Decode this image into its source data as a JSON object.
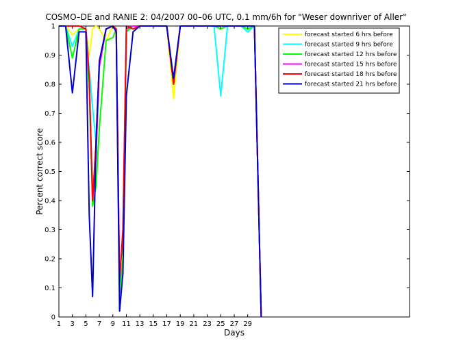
{
  "chart_data": {
    "type": "line",
    "title": "COSMO–DE and RANIE 2: 04/2007 00–06 UTC, 0.1 mm/6h for \"Weser downriver of Aller\"",
    "xlabel": "Days",
    "ylabel": "Percent correct score",
    "xlim": [
      1,
      53
    ],
    "ylim": [
      0,
      1
    ],
    "xticks": [
      1,
      3,
      5,
      7,
      9,
      11,
      13,
      15,
      17,
      19,
      21,
      23,
      25,
      27,
      29
    ],
    "yticks": [
      0,
      0.1,
      0.2,
      0.3,
      0.4,
      0.5,
      0.6,
      0.7,
      0.8,
      0.9,
      1
    ],
    "xtick_labels": [
      "1",
      "3",
      "5",
      "7",
      "9",
      "11",
      "13",
      "15",
      "17",
      "19",
      "21",
      "23",
      "25",
      "27",
      "29"
    ],
    "ytick_labels": [
      "0",
      "0.1",
      "0.2",
      "0.3",
      "0.4",
      "0.5",
      "0.6",
      "0.7",
      "0.8",
      "0.9",
      "1"
    ],
    "grid": false,
    "legend_position": "top-right",
    "x": [
      1,
      2,
      3,
      4,
      5,
      5.5,
      6,
      6.5,
      7,
      8,
      9,
      9.5,
      10,
      10.5,
      11,
      12,
      13,
      14,
      15,
      16,
      17,
      18,
      19,
      20,
      21,
      22,
      23,
      24,
      25,
      26,
      27,
      28,
      29,
      30,
      31
    ],
    "series": [
      {
        "name": "forecast started 6 hrs before",
        "color": "#ffff00",
        "values": [
          1,
          1,
          0.97,
          0.99,
          0.99,
          0.9,
          0.99,
          1,
          0.99,
          0.95,
          1,
          0.99,
          0.08,
          0.2,
          0.98,
          1,
          1,
          1,
          1,
          1,
          1,
          0.75,
          1,
          1,
          1,
          1,
          1,
          1,
          0.995,
          1,
          1,
          1,
          0.99,
          1,
          0
        ]
      },
      {
        "name": "forecast started 9 hrs before",
        "color": "#00ffff",
        "values": [
          1,
          1,
          0.93,
          0.99,
          0.99,
          0.85,
          0.72,
          0.6,
          0.88,
          0.99,
          1,
          0.99,
          0.08,
          0.2,
          0.98,
          1,
          1,
          1,
          1,
          1,
          1,
          0.8,
          1,
          1,
          1,
          1,
          1,
          1,
          0.76,
          1,
          1,
          1,
          0.98,
          1,
          0
        ]
      },
      {
        "name": "forecast started 12 hrs before",
        "color": "#00ff00",
        "values": [
          1,
          1,
          0.89,
          0.99,
          0.99,
          0.78,
          0.38,
          0.45,
          0.65,
          0.95,
          0.96,
          0.99,
          0.08,
          0.2,
          0.98,
          1,
          1,
          1,
          1,
          1,
          1,
          0.8,
          1,
          1,
          1,
          1,
          1,
          1,
          0.99,
          1,
          1,
          1,
          0.99,
          1,
          0
        ]
      },
      {
        "name": "forecast started 15 hrs before",
        "color": "#ff00ff",
        "values": [
          1,
          1,
          1,
          1,
          0.99,
          0.82,
          0.4,
          0.55,
          0.86,
          0.99,
          1,
          0.99,
          0.12,
          0.3,
          0.99,
          1,
          1,
          1,
          1,
          1,
          1,
          0.8,
          1,
          1,
          1,
          1,
          1,
          1,
          1,
          1,
          1,
          1,
          1,
          1,
          0
        ]
      },
      {
        "name": "forecast started 18 hrs before",
        "color": "#ff0000",
        "values": [
          1,
          1,
          1,
          1,
          0.99,
          0.82,
          0.4,
          0.6,
          0.88,
          0.99,
          1,
          0.99,
          0.12,
          0.3,
          1,
          0.99,
          1,
          1,
          1,
          1,
          1,
          0.8,
          1,
          1,
          1,
          1,
          1,
          1,
          1,
          1,
          1,
          1,
          1,
          1,
          0
        ]
      },
      {
        "name": "forecast started 21 hrs before",
        "color": "#0000cc",
        "values": [
          1,
          1,
          0.77,
          0.98,
          0.98,
          0.35,
          0.07,
          0.6,
          0.88,
          0.99,
          1,
          0.98,
          0.02,
          0.15,
          0.76,
          0.98,
          1,
          1,
          1,
          1,
          1,
          0.82,
          1,
          1,
          1,
          1,
          1,
          1,
          1,
          1,
          1,
          1,
          1,
          1,
          0
        ]
      }
    ]
  }
}
